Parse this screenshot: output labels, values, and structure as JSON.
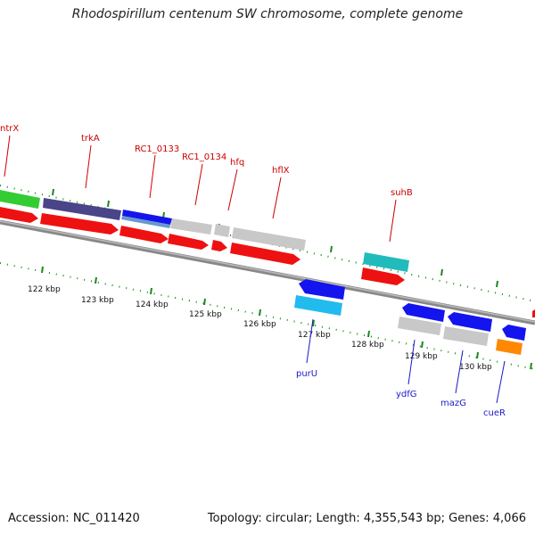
{
  "title": "Rhodospirillum centenum SW chromosome, complete genome",
  "footer": {
    "accession": "Accession: NC_011420",
    "topology": "Topology: circular; Length: 4,355,543 bp; Genes: 4,066"
  },
  "ticks": [
    {
      "label": "122 kbp",
      "pos": 122
    },
    {
      "label": "123 kbp",
      "pos": 123
    },
    {
      "label": "124 kbp",
      "pos": 124
    },
    {
      "label": "125 kbp",
      "pos": 125
    },
    {
      "label": "126 kbp",
      "pos": 126
    },
    {
      "label": "127 kbp",
      "pos": 127
    },
    {
      "label": "128 kbp",
      "pos": 128
    },
    {
      "label": "129 kbp",
      "pos": 129
    },
    {
      "label": "130 kbp",
      "pos": 130
    }
  ],
  "top_labels": [
    {
      "text": "ntrX",
      "color": "#cc0000"
    },
    {
      "text": "trkA",
      "color": "#cc0000"
    },
    {
      "text": "RC1_0133",
      "color": "#cc0000"
    },
    {
      "text": "RC1_0134",
      "color": "#cc0000"
    },
    {
      "text": "hfq",
      "color": "#cc0000"
    },
    {
      "text": "hflX",
      "color": "#cc0000"
    },
    {
      "text": "suhB",
      "color": "#cc0000"
    }
  ],
  "bottom_labels": [
    {
      "text": "purU",
      "color": "#1a1acc"
    },
    {
      "text": "ydfG",
      "color": "#1a1acc"
    },
    {
      "text": "mazG",
      "color": "#1a1acc"
    },
    {
      "text": "cueR",
      "color": "#1a1acc"
    }
  ],
  "colors": {
    "forward_cds": "#ee1111",
    "reverse_cds": "#1414ee",
    "gene_grey": "#c8c8c8",
    "backbone": "#777777",
    "tick_green": "#1a8a1a",
    "ntrX": "#33cc33",
    "trkA": "#4a4488",
    "suhB": "#22bbbb",
    "purU": "#22bbee",
    "cueR": "#ff8800"
  }
}
